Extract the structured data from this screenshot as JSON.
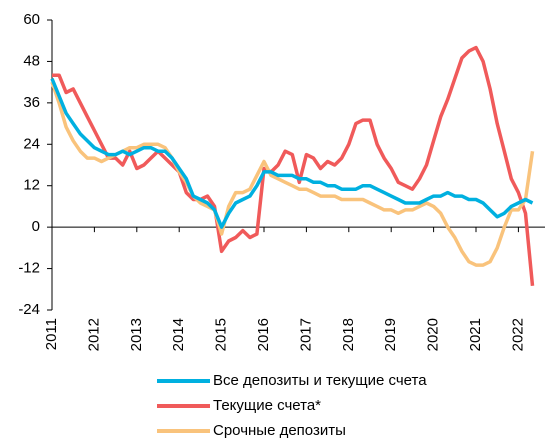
{
  "chart_data": {
    "type": "line",
    "categories": [
      "2011",
      null,
      null,
      null,
      null,
      null,
      "2012",
      null,
      null,
      null,
      null,
      null,
      "2013",
      null,
      null,
      null,
      null,
      null,
      "2014",
      null,
      null,
      null,
      null,
      null,
      "2015",
      null,
      null,
      null,
      null,
      null,
      "2016",
      null,
      null,
      null,
      null,
      null,
      "2017",
      null,
      null,
      null,
      null,
      null,
      "2018",
      null,
      null,
      null,
      null,
      null,
      "2019",
      null,
      null,
      null,
      null,
      null,
      "2020",
      null,
      null,
      null,
      null,
      null,
      "2021",
      null,
      null,
      null,
      null,
      null,
      "2022",
      null,
      null
    ],
    "series": [
      {
        "name": "Все депозиты и текущие счета",
        "color": "#00b0e0",
        "values": [
          43,
          38,
          33,
          30,
          27,
          25,
          23,
          22,
          21,
          21,
          22,
          21,
          22,
          23,
          23,
          22,
          22,
          20,
          17,
          14,
          9,
          8,
          7,
          5,
          0,
          4,
          7,
          8,
          9,
          12,
          16,
          16,
          15,
          15,
          15,
          14,
          14,
          13,
          13,
          12,
          12,
          11,
          11,
          11,
          12,
          12,
          11,
          10,
          9,
          8,
          7,
          7,
          7,
          8,
          9,
          9,
          10,
          9,
          9,
          8,
          8,
          7,
          5,
          3,
          4,
          6,
          7,
          8,
          7
        ]
      },
      {
        "name": "Текущие счета*",
        "color": "#f05a5a",
        "values": [
          44,
          44,
          39,
          40,
          36,
          32,
          28,
          24,
          20,
          20,
          18,
          22,
          17,
          18,
          20,
          22,
          20,
          18,
          16,
          10,
          8,
          8,
          9,
          6,
          -7,
          -4,
          -3,
          -1,
          -3,
          -2,
          17,
          16,
          18,
          22,
          21,
          13,
          21,
          20,
          17,
          19,
          18,
          20,
          24,
          30,
          31,
          31,
          24,
          20,
          17,
          13,
          12,
          11,
          14,
          18,
          25,
          32,
          37,
          43,
          49,
          51,
          52,
          48,
          40,
          30,
          22,
          14,
          10,
          4,
          -17
        ]
      },
      {
        "name": "Срочные депозиты",
        "color": "#f9c37c",
        "values": [
          42,
          36,
          29,
          25,
          22,
          20,
          20,
          19,
          20,
          21,
          22,
          23,
          23,
          24,
          24,
          24,
          23,
          20,
          16,
          13,
          9,
          7,
          6,
          5,
          -2,
          6,
          10,
          10,
          11,
          15,
          19,
          15,
          14,
          13,
          12,
          11,
          11,
          10,
          9,
          9,
          9,
          8,
          8,
          8,
          8,
          7,
          6,
          5,
          5,
          4,
          5,
          5,
          6,
          7,
          6,
          4,
          0,
          -3,
          -7,
          -10,
          -11,
          -11,
          -10,
          -6,
          0,
          5,
          5,
          8,
          22
        ]
      }
    ],
    "ylim": [
      -24,
      60
    ],
    "yticks": [
      -24,
      -12,
      0,
      12,
      24,
      36,
      48,
      60
    ],
    "grid": false
  }
}
